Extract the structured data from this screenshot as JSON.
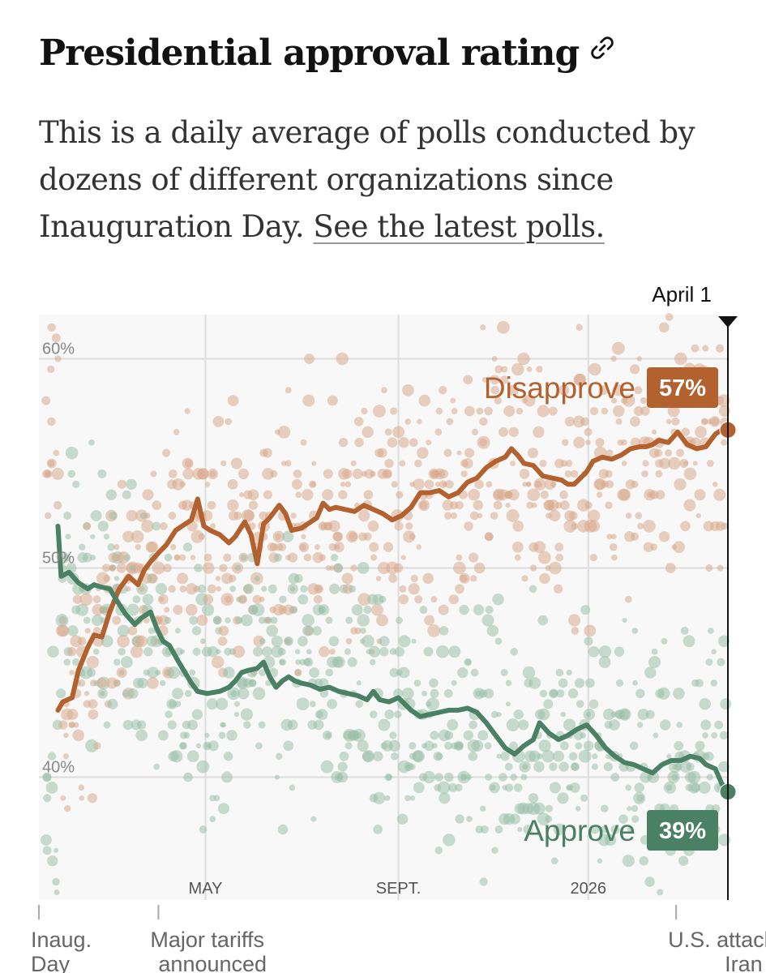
{
  "header": {
    "title": "Presidential approval rating",
    "description": "This is a daily average of polls conducted by dozens of different organizations since Inauguration Day. ",
    "link_text": "See the latest polls."
  },
  "colors": {
    "disapprove": "#b3612e",
    "approve": "#4a8064",
    "disapprove_dots": "#d8a98c",
    "approve_dots": "#9bbfa9"
  },
  "chart_data": {
    "type": "line",
    "title": "Presidential approval rating",
    "ylim": [
      36,
      62
    ],
    "yticks": [
      {
        "value": 60,
        "label": "60%"
      },
      {
        "value": 50,
        "label": "50%"
      },
      {
        "value": 40,
        "label": "40%"
      }
    ],
    "x_range_days": [
      0,
      434
    ],
    "month_ticks": [
      {
        "day": 101,
        "label": "MAY"
      },
      {
        "day": 224,
        "label": "SEPT."
      },
      {
        "day": 345,
        "label": "2026"
      }
    ],
    "events": [
      {
        "day": 0,
        "label": "Inaug.",
        "label2": "Day"
      },
      {
        "day": 71,
        "label": "Major tariffs",
        "label2": "announced"
      },
      {
        "day": 401,
        "label": "U.S. attacks",
        "label2": "Iran"
      }
    ],
    "current_date": {
      "day": 434,
      "label": "April 1"
    },
    "series": [
      {
        "name": "Disapprove",
        "badge": "57%",
        "points": [
          [
            7,
            43.2
          ],
          [
            10,
            43.6
          ],
          [
            16,
            43.8
          ],
          [
            20,
            45.1
          ],
          [
            26,
            46.2
          ],
          [
            30,
            46.8
          ],
          [
            35,
            46.7
          ],
          [
            40,
            47.9
          ],
          [
            46,
            49.0
          ],
          [
            52,
            49.6
          ],
          [
            58,
            49.2
          ],
          [
            62,
            49.9
          ],
          [
            66,
            50.3
          ],
          [
            72,
            50.8
          ],
          [
            76,
            51.1
          ],
          [
            82,
            51.8
          ],
          [
            86,
            52.0
          ],
          [
            92,
            52.3
          ],
          [
            96,
            53.3
          ],
          [
            100,
            52.0
          ],
          [
            104,
            51.8
          ],
          [
            110,
            51.6
          ],
          [
            116,
            51.2
          ],
          [
            120,
            51.5
          ],
          [
            126,
            52.2
          ],
          [
            130,
            51.6
          ],
          [
            134,
            50.2
          ],
          [
            138,
            52.1
          ],
          [
            142,
            52.4
          ],
          [
            148,
            53.0
          ],
          [
            152,
            52.6
          ],
          [
            156,
            51.8
          ],
          [
            162,
            51.9
          ],
          [
            168,
            52.2
          ],
          [
            172,
            52.4
          ],
          [
            176,
            53.1
          ],
          [
            180,
            52.8
          ],
          [
            184,
            52.9
          ],
          [
            190,
            52.8
          ],
          [
            196,
            52.7
          ],
          [
            202,
            53.0
          ],
          [
            208,
            52.8
          ],
          [
            214,
            52.6
          ],
          [
            220,
            52.3
          ],
          [
            226,
            52.5
          ],
          [
            232,
            52.9
          ],
          [
            238,
            53.6
          ],
          [
            244,
            53.6
          ],
          [
            250,
            53.7
          ],
          [
            256,
            53.4
          ],
          [
            262,
            53.6
          ],
          [
            268,
            54.1
          ],
          [
            274,
            54.3
          ],
          [
            280,
            54.8
          ],
          [
            286,
            55.1
          ],
          [
            292,
            55.3
          ],
          [
            296,
            55.7
          ],
          [
            300,
            55.4
          ],
          [
            304,
            55.0
          ],
          [
            310,
            54.9
          ],
          [
            316,
            54.4
          ],
          [
            322,
            54.3
          ],
          [
            328,
            54.2
          ],
          [
            332,
            54.0
          ],
          [
            336,
            54.0
          ],
          [
            340,
            54.3
          ],
          [
            344,
            54.6
          ],
          [
            348,
            55.1
          ],
          [
            354,
            55.3
          ],
          [
            360,
            55.2
          ],
          [
            366,
            55.4
          ],
          [
            372,
            55.7
          ],
          [
            378,
            55.8
          ],
          [
            382,
            55.8
          ],
          [
            386,
            55.9
          ],
          [
            390,
            56.1
          ],
          [
            396,
            56.0
          ],
          [
            402,
            56.5
          ],
          [
            408,
            55.9
          ],
          [
            414,
            55.7
          ],
          [
            420,
            55.8
          ],
          [
            426,
            56.4
          ],
          [
            430,
            56.6
          ],
          [
            434,
            56.6
          ]
        ]
      },
      {
        "name": "Approve",
        "badge": "39%",
        "points": [
          [
            7,
            52.0
          ],
          [
            9,
            49.6
          ],
          [
            14,
            49.8
          ],
          [
            20,
            49.3
          ],
          [
            26,
            49.0
          ],
          [
            30,
            49.2
          ],
          [
            34,
            49.1
          ],
          [
            40,
            49.0
          ],
          [
            44,
            48.5
          ],
          [
            50,
            47.8
          ],
          [
            56,
            47.3
          ],
          [
            60,
            47.6
          ],
          [
            66,
            47.9
          ],
          [
            70,
            47.1
          ],
          [
            74,
            46.5
          ],
          [
            78,
            46.3
          ],
          [
            84,
            45.5
          ],
          [
            88,
            45.0
          ],
          [
            92,
            44.5
          ],
          [
            96,
            44.1
          ],
          [
            102,
            44.0
          ],
          [
            110,
            44.1
          ],
          [
            116,
            44.3
          ],
          [
            120,
            44.6
          ],
          [
            124,
            45.0
          ],
          [
            128,
            45.1
          ],
          [
            134,
            45.2
          ],
          [
            138,
            45.5
          ],
          [
            142,
            44.8
          ],
          [
            146,
            44.3
          ],
          [
            150,
            44.6
          ],
          [
            154,
            44.8
          ],
          [
            158,
            44.6
          ],
          [
            162,
            44.5
          ],
          [
            168,
            44.4
          ],
          [
            174,
            44.2
          ],
          [
            180,
            44.3
          ],
          [
            186,
            44.1
          ],
          [
            192,
            44.0
          ],
          [
            198,
            43.9
          ],
          [
            204,
            43.7
          ],
          [
            208,
            44.1
          ],
          [
            212,
            43.7
          ],
          [
            218,
            43.6
          ],
          [
            224,
            43.8
          ],
          [
            228,
            43.5
          ],
          [
            232,
            43.2
          ],
          [
            238,
            42.9
          ],
          [
            244,
            43.0
          ],
          [
            250,
            43.1
          ],
          [
            256,
            43.2
          ],
          [
            262,
            43.2
          ],
          [
            268,
            43.3
          ],
          [
            274,
            43.1
          ],
          [
            280,
            42.6
          ],
          [
            286,
            42.0
          ],
          [
            292,
            41.4
          ],
          [
            298,
            41.1
          ],
          [
            304,
            41.5
          ],
          [
            310,
            41.8
          ],
          [
            314,
            42.6
          ],
          [
            320,
            42.1
          ],
          [
            326,
            41.8
          ],
          [
            332,
            42.0
          ],
          [
            338,
            42.3
          ],
          [
            344,
            42.5
          ],
          [
            350,
            42.0
          ],
          [
            356,
            41.4
          ],
          [
            362,
            41.0
          ],
          [
            368,
            40.7
          ],
          [
            374,
            40.6
          ],
          [
            380,
            40.4
          ],
          [
            386,
            40.2
          ],
          [
            392,
            40.6
          ],
          [
            398,
            40.8
          ],
          [
            404,
            40.8
          ],
          [
            410,
            41.0
          ],
          [
            416,
            40.9
          ],
          [
            420,
            40.6
          ],
          [
            426,
            40.4
          ],
          [
            430,
            39.7
          ],
          [
            434,
            39.3
          ]
        ]
      }
    ]
  }
}
